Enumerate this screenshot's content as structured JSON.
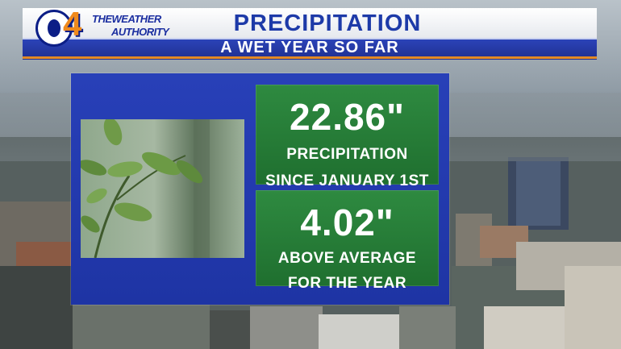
{
  "header": {
    "logo_number": "4",
    "logo_line1": "THEWEATHER",
    "logo_line2": "AUTHORITY",
    "title": "PRECIPITATION",
    "subtitle": "A WET YEAR SO FAR"
  },
  "stats": [
    {
      "value": "22.86\"",
      "label_line1": "PRECIPITATION",
      "label_line2": "SINCE JANUARY 1ST"
    },
    {
      "value": "4.02\"",
      "label_line1": "ABOVE AVERAGE",
      "label_line2": "FOR THE YEAR"
    }
  ],
  "colors": {
    "header_blue": "#1f2f8f",
    "title_blue": "#1d3aa8",
    "accent_orange": "#e48a24",
    "panel_blue": "#2840b8",
    "stat_green": "#1f6f2f"
  },
  "icons": [
    "cbs-eye-logo",
    "rain-leaves-photo"
  ]
}
